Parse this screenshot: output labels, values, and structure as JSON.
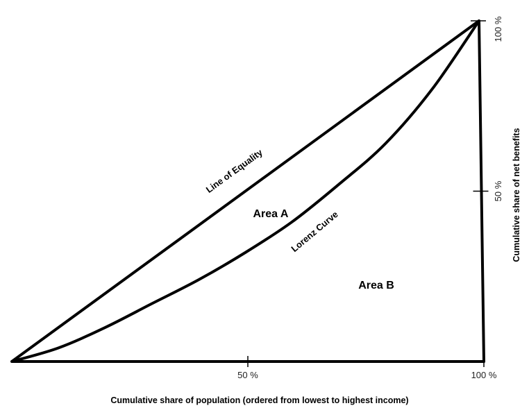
{
  "chart_data": {
    "type": "line",
    "xlabel": "Cumulative share of population (ordered from lowest to highest income)",
    "ylabel": "Cumulative share of net benefits",
    "xlim": [
      0,
      100
    ],
    "ylim": [
      0,
      100
    ],
    "x_ticks": [
      {
        "value": 50,
        "label": "50 %"
      },
      {
        "value": 100,
        "label": "100 %"
      }
    ],
    "y_ticks": [
      {
        "value": 50,
        "label": "50 %"
      },
      {
        "value": 100,
        "label": "100 %"
      }
    ],
    "series": [
      {
        "name": "Line of Equality",
        "x": [
          0,
          100
        ],
        "y": [
          0,
          100
        ]
      },
      {
        "name": "Lorenz Curve",
        "x": [
          0,
          10,
          20,
          30,
          40,
          50,
          60,
          70,
          80,
          90,
          100
        ],
        "y": [
          0,
          4,
          10,
          17,
          24,
          32,
          41,
          52,
          64,
          80,
          100
        ]
      }
    ],
    "annotations": [
      {
        "text": "Area A",
        "x": 53,
        "y": 43
      },
      {
        "text": "Area B",
        "x": 77,
        "y": 22
      }
    ],
    "grid": false,
    "legend": "none"
  }
}
